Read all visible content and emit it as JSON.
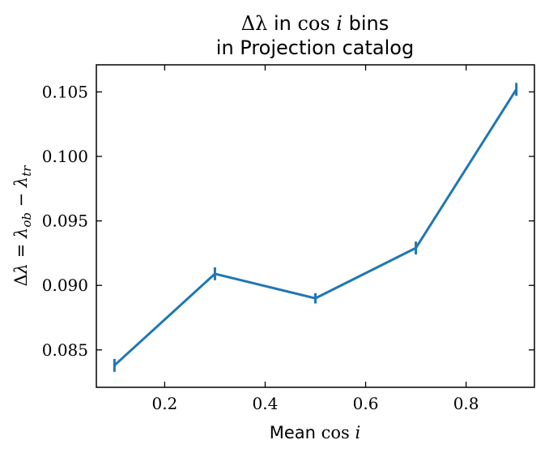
{
  "chart_data": {
    "type": "line",
    "title_line1_parts": {
      "delta": "Δλ",
      "text_in": " in ",
      "cos": "cos",
      "i": " i",
      "bins": " bins"
    },
    "title_line2": "in Projection catalog",
    "xlabel_parts": {
      "text": "Mean ",
      "cos": "cos",
      "i": " i"
    },
    "ylabel": "Δλ = λ_ob − λ_tr",
    "xlim": [
      0.064,
      0.936
    ],
    "ylim": [
      0.0821,
      0.1071
    ],
    "xticks": [
      0.2,
      0.4,
      0.6,
      0.8
    ],
    "xtick_labels": [
      "0.2",
      "0.4",
      "0.6",
      "0.8"
    ],
    "yticks": [
      0.085,
      0.09,
      0.095,
      0.1,
      0.105
    ],
    "ytick_labels": [
      "0.085",
      "0.090",
      "0.095",
      "0.100",
      "0.105"
    ],
    "series": [
      {
        "color": "#1f77b4",
        "x": [
          0.1,
          0.3,
          0.5,
          0.7,
          0.9
        ],
        "y": [
          0.0838,
          0.0909,
          0.089,
          0.0929,
          0.1052
        ],
        "yerr": [
          0.0005,
          0.0005,
          0.0004,
          0.0005,
          0.0005
        ]
      }
    ]
  }
}
